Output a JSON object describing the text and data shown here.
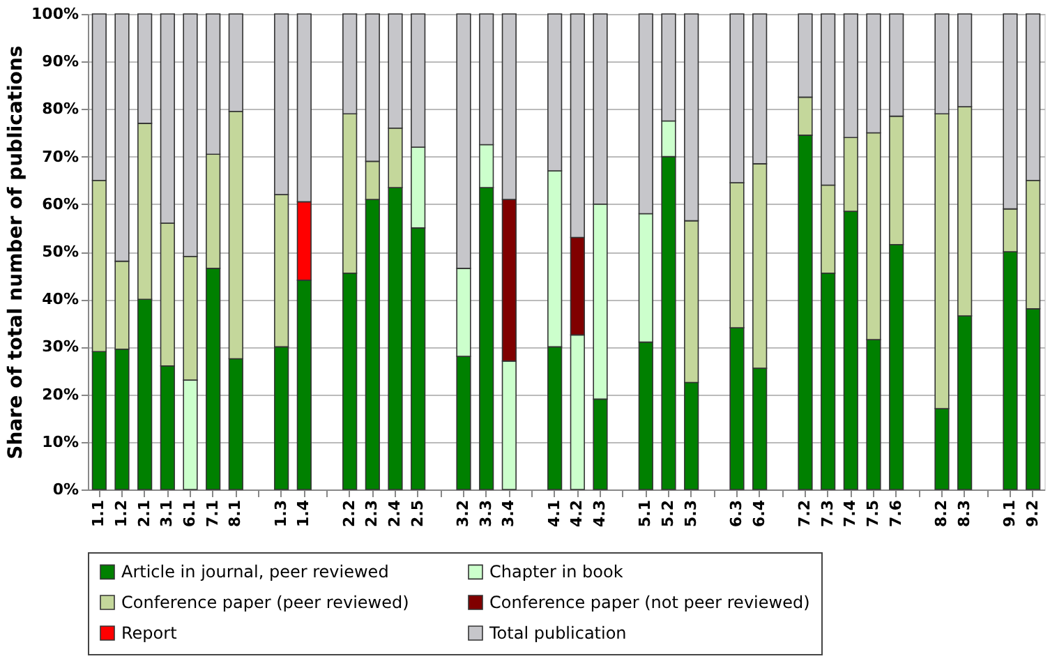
{
  "chart_data": {
    "type": "bar",
    "stacked": true,
    "ylabel": "Share of total number of publications",
    "categories": [
      "1.1",
      "1.2",
      "2.1",
      "3.1",
      "6.1",
      "7.1",
      "8.1",
      null,
      "1.3",
      "1.4",
      null,
      "2.2",
      "2.3",
      "2.4",
      "2.5",
      null,
      "3.2",
      "3.3",
      "3.4",
      null,
      "4.1",
      "4.2",
      "4.3",
      null,
      "5.1",
      "5.2",
      "5.3",
      null,
      "6.3",
      "6.4",
      null,
      "7.2",
      "7.3",
      "7.4",
      "7.5",
      "7.6",
      null,
      "8.2",
      "8.3",
      null,
      "9.1",
      "9.2"
    ],
    "series": [
      {
        "name": "Article in journal, peer reviewed",
        "color": "#008000",
        "values": [
          29,
          29.5,
          40,
          26,
          null,
          46.5,
          27.5,
          null,
          30,
          44,
          null,
          45.5,
          61,
          63.5,
          55,
          null,
          28,
          63.5,
          null,
          null,
          30,
          null,
          19,
          null,
          31,
          70,
          22.5,
          null,
          34,
          25.5,
          null,
          74.5,
          45.5,
          58.5,
          31.5,
          51.5,
          null,
          17,
          36.5,
          null,
          50,
          38
        ]
      },
      {
        "name": "Chapter in book",
        "color": "#ccffcc",
        "values": [
          null,
          null,
          null,
          null,
          23,
          null,
          null,
          null,
          null,
          null,
          null,
          null,
          null,
          null,
          17,
          null,
          18.5,
          9,
          27,
          null,
          37,
          32.5,
          41,
          null,
          27,
          7.5,
          null,
          null,
          null,
          null,
          null,
          null,
          null,
          null,
          null,
          null,
          null,
          null,
          null,
          null,
          null,
          null
        ]
      },
      {
        "name": "Conference paper (peer reviewed)",
        "color": "#c4d79b",
        "values": [
          36,
          18.5,
          37,
          30,
          26,
          24,
          52,
          null,
          32,
          null,
          null,
          33.5,
          8,
          12.5,
          null,
          null,
          null,
          null,
          null,
          null,
          null,
          null,
          null,
          null,
          null,
          null,
          34,
          null,
          30.5,
          43,
          null,
          8,
          18.5,
          15.5,
          43.5,
          27,
          null,
          62,
          44,
          null,
          9,
          27
        ]
      },
      {
        "name": "Conference paper (not peer reviewed)",
        "color": "#800000",
        "values": [
          null,
          null,
          null,
          null,
          null,
          null,
          null,
          null,
          null,
          null,
          null,
          null,
          null,
          null,
          null,
          null,
          null,
          null,
          34,
          null,
          null,
          20.5,
          null,
          null,
          null,
          null,
          null,
          null,
          null,
          null,
          null,
          null,
          null,
          null,
          null,
          null,
          null,
          null,
          null,
          null,
          null,
          null
        ]
      },
      {
        "name": "Report",
        "color": "#ff0000",
        "values": [
          null,
          null,
          null,
          null,
          null,
          null,
          null,
          null,
          null,
          16.5,
          null,
          null,
          null,
          null,
          null,
          null,
          null,
          null,
          null,
          null,
          null,
          null,
          null,
          null,
          null,
          null,
          null,
          null,
          null,
          null,
          null,
          null,
          null,
          null,
          null,
          null,
          null,
          null,
          null,
          null,
          null,
          null
        ]
      },
      {
        "name": "Total publication",
        "color": "#c6c6ca",
        "values": [
          35,
          52,
          23,
          44,
          51,
          29.5,
          20.5,
          null,
          38,
          39.5,
          null,
          21,
          31,
          24,
          28,
          null,
          53.5,
          27.5,
          39,
          null,
          33,
          47,
          40,
          null,
          42,
          22.5,
          43.5,
          null,
          35.5,
          31.5,
          null,
          17.5,
          36,
          26,
          25,
          21.5,
          null,
          21,
          19.5,
          null,
          41,
          35
        ]
      }
    ],
    "ylim": [
      0,
      100
    ],
    "yticks": [
      {
        "value": 0,
        "label": "0%"
      },
      {
        "value": 10,
        "label": "10%"
      },
      {
        "value": 20,
        "label": "20%"
      },
      {
        "value": 30,
        "label": "30%"
      },
      {
        "value": 40,
        "label": "40%"
      },
      {
        "value": 50,
        "label": "50%"
      },
      {
        "value": 60,
        "label": "60%"
      },
      {
        "value": 70,
        "label": "70%"
      },
      {
        "value": 80,
        "label": "80%"
      },
      {
        "value": 90,
        "label": "90%"
      },
      {
        "value": 100,
        "label": "100%"
      }
    ],
    "grid": "y",
    "legend": "bottom"
  }
}
